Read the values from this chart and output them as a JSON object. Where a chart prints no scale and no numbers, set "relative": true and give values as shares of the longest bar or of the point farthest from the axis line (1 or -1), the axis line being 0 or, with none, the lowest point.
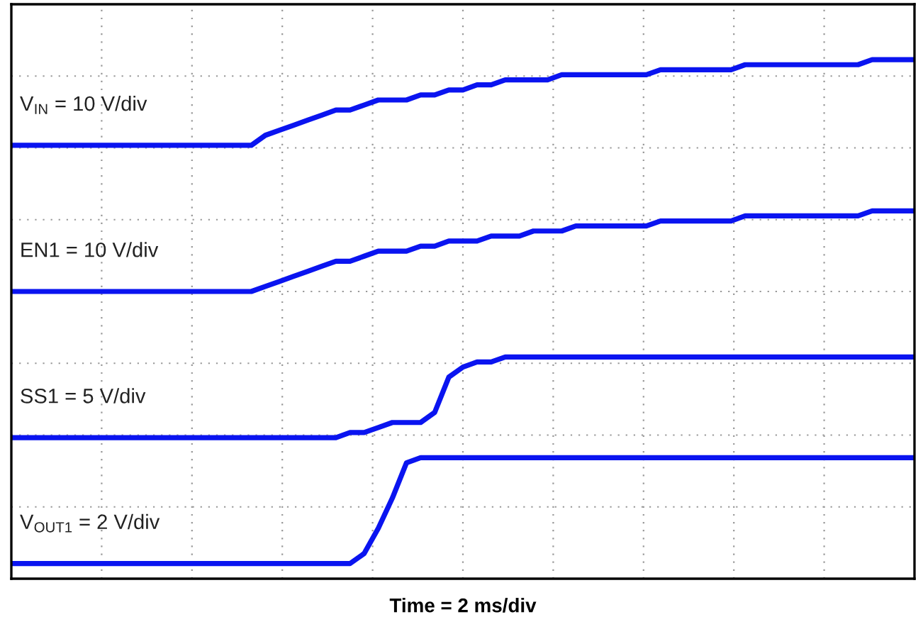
{
  "chart_data": {
    "type": "line",
    "relative": true,
    "xlabel": "Time = 2 ms/div",
    "grid": true,
    "legend": false,
    "line_style": "solid",
    "marker": "none",
    "categories": [
      null,
      null,
      null,
      null,
      null,
      null,
      null,
      null,
      null,
      null,
      null,
      null,
      null,
      null,
      null,
      null,
      null,
      null,
      null,
      null,
      null,
      null,
      null,
      null,
      null,
      null,
      null,
      null,
      null,
      null,
      null,
      null,
      null,
      null,
      null,
      null,
      null,
      null,
      null,
      null,
      null,
      null,
      null,
      null,
      null,
      null,
      null,
      null,
      null,
      null,
      null,
      null,
      null,
      null,
      null,
      null,
      null,
      null,
      null,
      null,
      null,
      null,
      null,
      null,
      null
    ],
    "series": [
      {
        "name": "V$_{IN}$ = 10 V/div",
        "color": "#0a14f0",
        "values": [
          0.83,
          0.83,
          0.83,
          0.83,
          0.83,
          0.83,
          0.83,
          0.83,
          0.83,
          0.83,
          0.83,
          0.83,
          0.83,
          0.83,
          0.83,
          0.83,
          0.83,
          0.83,
          0.85,
          0.86,
          0.87,
          0.88,
          0.89,
          0.9,
          0.9,
          0.91,
          0.92,
          0.92,
          0.92,
          0.93,
          0.93,
          0.94,
          0.94,
          0.95,
          0.95,
          0.96,
          0.96,
          0.96,
          0.96,
          0.97,
          0.97,
          0.97,
          0.97,
          0.97,
          0.97,
          0.97,
          0.98,
          0.98,
          0.98,
          0.98,
          0.98,
          0.98,
          0.99,
          0.99,
          0.99,
          0.99,
          0.99,
          0.99,
          0.99,
          0.99,
          0.99,
          1.0,
          1.0,
          1.0,
          1.0
        ]
      },
      {
        "name": "EN1 = 10 V/div",
        "color": "#0a14f0",
        "values": [
          0.54,
          0.54,
          0.54,
          0.54,
          0.54,
          0.54,
          0.54,
          0.54,
          0.54,
          0.54,
          0.54,
          0.54,
          0.54,
          0.54,
          0.54,
          0.54,
          0.54,
          0.54,
          0.55,
          0.56,
          0.57,
          0.58,
          0.59,
          0.6,
          0.6,
          0.61,
          0.62,
          0.62,
          0.62,
          0.63,
          0.63,
          0.64,
          0.64,
          0.64,
          0.65,
          0.65,
          0.65,
          0.66,
          0.66,
          0.66,
          0.67,
          0.67,
          0.67,
          0.67,
          0.67,
          0.67,
          0.68,
          0.68,
          0.68,
          0.68,
          0.68,
          0.68,
          0.69,
          0.69,
          0.69,
          0.69,
          0.69,
          0.69,
          0.69,
          0.69,
          0.69,
          0.7,
          0.7,
          0.7,
          0.7
        ]
      },
      {
        "name": "SS1 = 5 V/div",
        "color": "#0a14f0",
        "values": [
          0.25,
          0.25,
          0.25,
          0.25,
          0.25,
          0.25,
          0.25,
          0.25,
          0.25,
          0.25,
          0.25,
          0.25,
          0.25,
          0.25,
          0.25,
          0.25,
          0.25,
          0.25,
          0.25,
          0.25,
          0.25,
          0.25,
          0.25,
          0.25,
          0.26,
          0.26,
          0.27,
          0.28,
          0.28,
          0.28,
          0.3,
          0.37,
          0.39,
          0.4,
          0.4,
          0.41,
          0.41,
          0.41,
          0.41,
          0.41,
          0.41,
          0.41,
          0.41,
          0.41,
          0.41,
          0.41,
          0.41,
          0.41,
          0.41,
          0.41,
          0.41,
          0.41,
          0.41,
          0.41,
          0.41,
          0.41,
          0.41,
          0.41,
          0.41,
          0.41,
          0.41,
          0.41,
          0.41,
          0.41,
          0.41
        ]
      },
      {
        "name": "V$_{OUT1}$ = 2 V/div",
        "color": "#0a14f0",
        "values": [
          0.0,
          0.0,
          0.0,
          0.0,
          0.0,
          0.0,
          0.0,
          0.0,
          0.0,
          0.0,
          0.0,
          0.0,
          0.0,
          0.0,
          0.0,
          0.0,
          0.0,
          0.0,
          0.0,
          0.0,
          0.0,
          0.0,
          0.0,
          0.0,
          0.0,
          0.02,
          0.07,
          0.13,
          0.2,
          0.21,
          0.21,
          0.21,
          0.21,
          0.21,
          0.21,
          0.21,
          0.21,
          0.21,
          0.21,
          0.21,
          0.21,
          0.21,
          0.21,
          0.21,
          0.21,
          0.21,
          0.21,
          0.21,
          0.21,
          0.21,
          0.21,
          0.21,
          0.21,
          0.21,
          0.21,
          0.21,
          0.21,
          0.21,
          0.21,
          0.21,
          0.21,
          0.21,
          0.21,
          0.21,
          0.21
        ]
      }
    ]
  }
}
